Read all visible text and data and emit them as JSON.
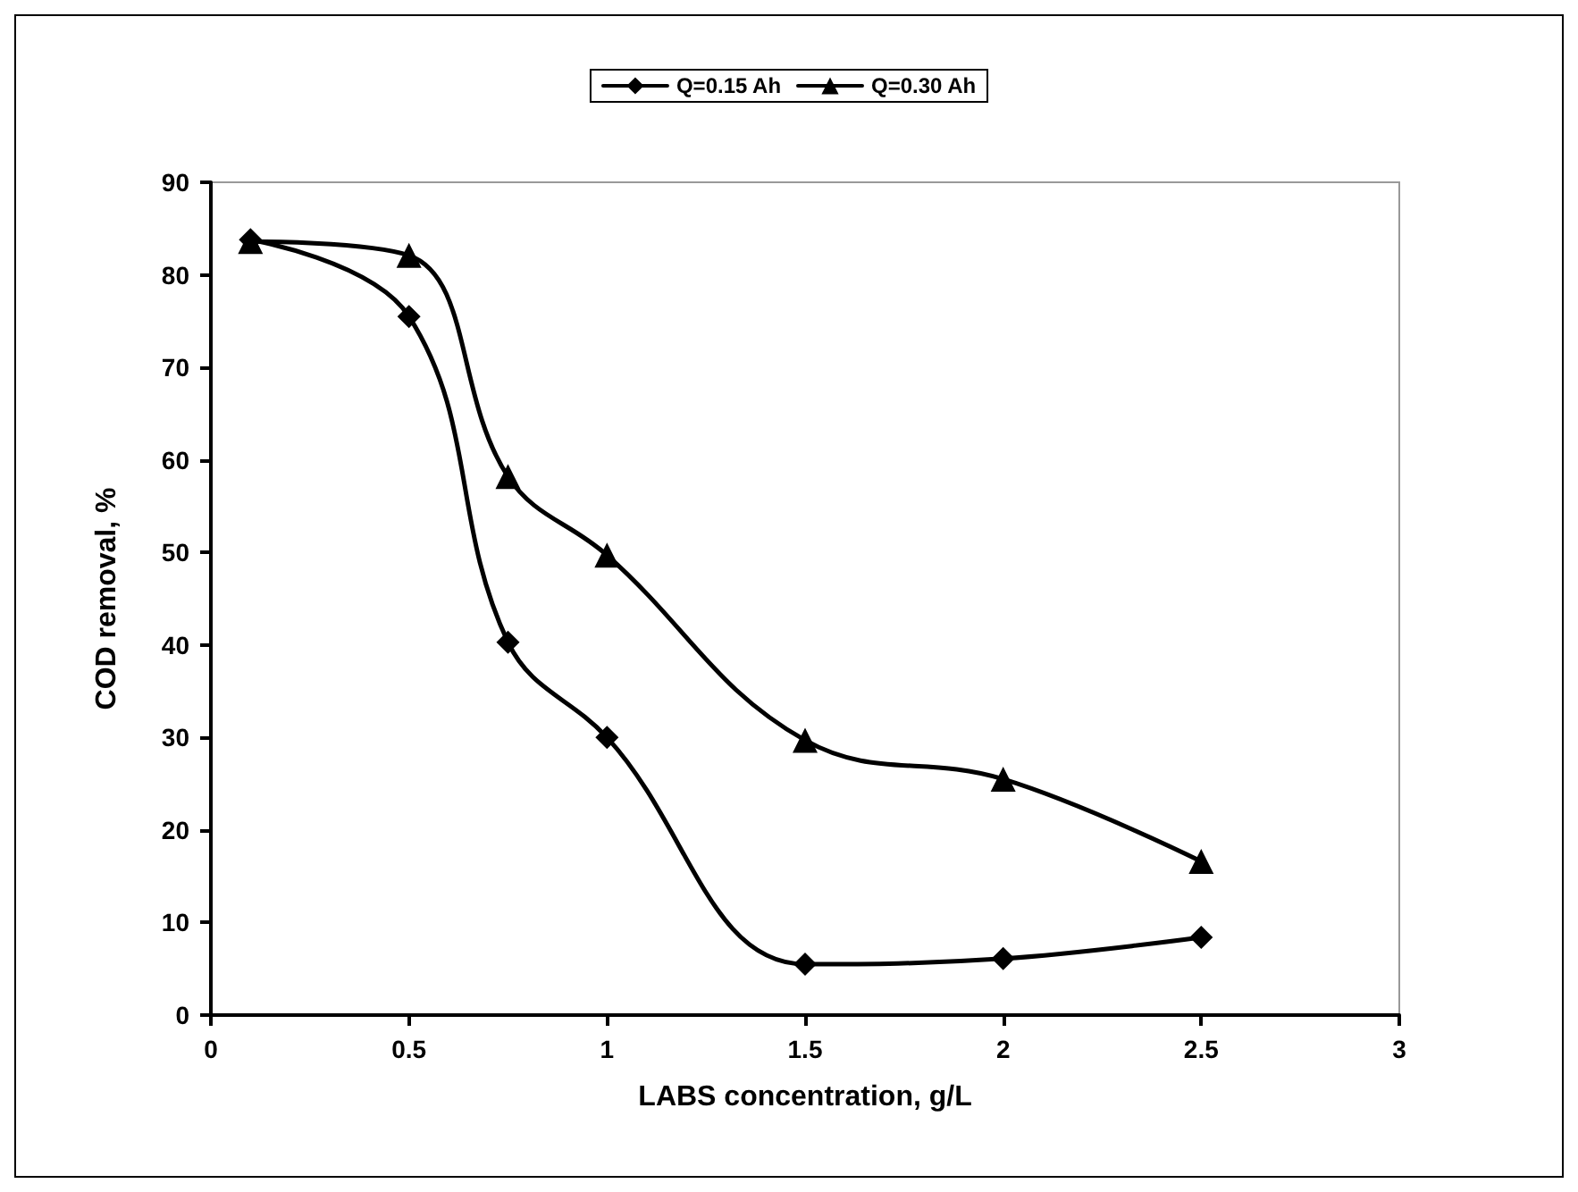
{
  "chart_data": {
    "type": "line",
    "xlabel": "LABS concentration, g/L",
    "ylabel": "COD removal, %",
    "xlim": [
      0,
      3
    ],
    "xticks": [
      0,
      0.5,
      1,
      1.5,
      2,
      2.5,
      3
    ],
    "ylim": [
      0,
      90
    ],
    "yticks": [
      0,
      10,
      20,
      30,
      40,
      50,
      60,
      70,
      80,
      90
    ],
    "grid": false,
    "legend": "top",
    "line_style": "solid",
    "series": [
      {
        "name": "Q=0.15 Ah",
        "color": "#000000",
        "marker": "diamond",
        "x": [
          0.1,
          0.5,
          0.75,
          1,
          1.5,
          2,
          2.5
        ],
        "values": [
          83.8,
          75.5,
          40.3,
          30,
          5.5,
          6.1,
          8.4
        ]
      },
      {
        "name": "Q=0.30 Ah",
        "color": "#000000",
        "marker": "triangle",
        "x": [
          0.1,
          0.5,
          0.75,
          1,
          1.5,
          2,
          2.5
        ],
        "values": [
          83.6,
          82.1,
          58.2,
          49.7,
          29.7,
          25.5,
          16.6
        ]
      }
    ]
  }
}
